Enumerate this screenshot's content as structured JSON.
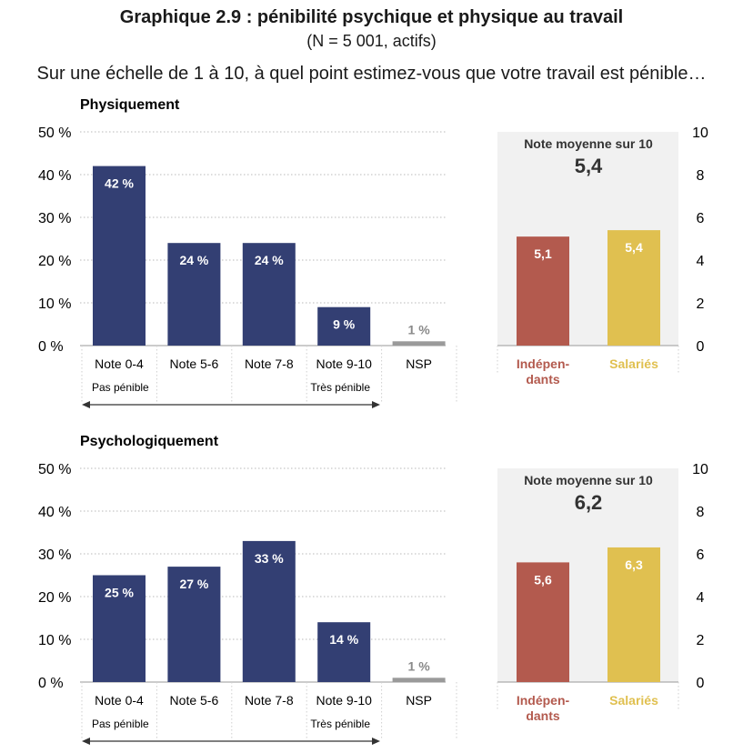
{
  "title": "Graphique 2.9 : pénibilité psychique et physique au travail",
  "subtitle": "(N = 5 001, actifs)",
  "question": "Sur une échelle de 1 à 10, à quel point estimez-vous que votre travail est pénible…",
  "colors": {
    "bar_main": "#333f73",
    "bar_nsp": "#9a9a9a",
    "independants": "#b35a4e",
    "salaries": "#e0c050",
    "panel_bg": "#f1f1f1"
  },
  "chart_data": [
    {
      "type": "bar",
      "title": "Physiquement",
      "categories": [
        "Note 0-4",
        "Note 5-6",
        "Note 7-8",
        "Note 9-10",
        "NSP"
      ],
      "values": [
        42,
        24,
        24,
        9,
        1
      ],
      "value_labels": [
        "42 %",
        "24 %",
        "24 %",
        "9 %",
        "1 %"
      ],
      "ylim": [
        0,
        50
      ],
      "yticks": [
        "0 %",
        "10 %",
        "20 %",
        "30 %",
        "40 %",
        "50 %"
      ],
      "scale_left": "Pas pénible",
      "scale_right": "Très pénible",
      "mean_panel": {
        "heading": "Note moyenne sur 10",
        "overall": "5,4",
        "ylim": [
          0,
          10
        ],
        "yticks": [
          "0",
          "2",
          "4",
          "6",
          "8",
          "10"
        ],
        "categories": [
          "Indépen-\ndants",
          "Salariés"
        ],
        "values": [
          5.1,
          5.4
        ],
        "value_labels": [
          "5,1",
          "5,4"
        ]
      }
    },
    {
      "type": "bar",
      "title": "Psychologiquement",
      "categories": [
        "Note 0-4",
        "Note 5-6",
        "Note 7-8",
        "Note 9-10",
        "NSP"
      ],
      "values": [
        25,
        27,
        33,
        14,
        1
      ],
      "value_labels": [
        "25 %",
        "27 %",
        "33 %",
        "14 %",
        "1 %"
      ],
      "ylim": [
        0,
        50
      ],
      "yticks": [
        "0 %",
        "10 %",
        "20 %",
        "30 %",
        "40 %",
        "50 %"
      ],
      "scale_left": "Pas pénible",
      "scale_right": "Très pénible",
      "mean_panel": {
        "heading": "Note moyenne sur 10",
        "overall": "6,2",
        "ylim": [
          0,
          10
        ],
        "yticks": [
          "0",
          "2",
          "4",
          "6",
          "8",
          "10"
        ],
        "categories": [
          "Indépen-\ndants",
          "Salariés"
        ],
        "values": [
          5.6,
          6.3
        ],
        "value_labels": [
          "5,6",
          "6,3"
        ]
      }
    }
  ]
}
